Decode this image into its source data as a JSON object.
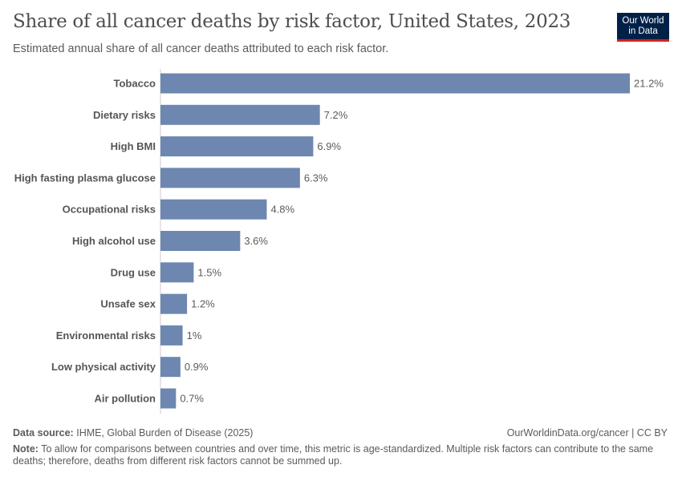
{
  "title": "Share of all cancer deaths by risk factor, United States, 2023",
  "subtitle": "Estimated annual share of all cancer deaths attributed to each risk factor.",
  "logo": "Our World in Data",
  "logo_lines": [
    "Our World",
    "in Data"
  ],
  "footer": {
    "source_label": "Data source:",
    "source": "IHME, Global Burden of Disease (2025)",
    "url": "OurWorldinData.org/cancer | CC BY",
    "note_label": "Note:",
    "note": "To allow for comparisons between countries and over time, this metric is age-standardized. Multiple risk factors can contribute to the same deaths; therefore, deaths from different risk factors cannot be summed up."
  },
  "chart_data": {
    "type": "bar",
    "orientation": "horizontal",
    "title": "Share of all cancer deaths by risk factor, United States, 2023",
    "categories": [
      "Tobacco",
      "Dietary risks",
      "High BMI",
      "High fasting plasma glucose",
      "Occupational risks",
      "High alcohol use",
      "Drug use",
      "Unsafe sex",
      "Environmental risks",
      "Low physical activity",
      "Air pollution"
    ],
    "values": [
      21.2,
      7.2,
      6.9,
      6.3,
      4.8,
      3.6,
      1.5,
      1.2,
      1.0,
      0.9,
      0.7
    ],
    "labels": [
      "21.2%",
      "7.2%",
      "6.9%",
      "6.3%",
      "4.8%",
      "3.6%",
      "1.5%",
      "1.2%",
      "1%",
      "0.9%",
      "0.7%"
    ],
    "unit": "%",
    "bar_color": "#6d87b0",
    "grid": false
  }
}
